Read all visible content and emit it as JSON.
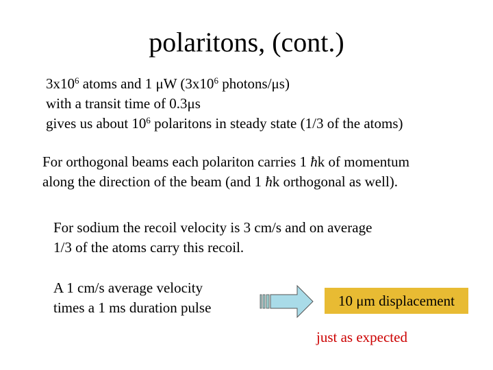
{
  "title": "polaritons, (cont.)",
  "paragraphs": [
    {
      "lines": [
        [
          "3x10",
          {
            "sup": "6"
          },
          " atoms and 1 μW (3x10",
          {
            "sup": "6"
          },
          " photons/μs)"
        ],
        [
          "with a transit time of 0.3μs"
        ],
        [
          "gives us about 10",
          {
            "sup": "6"
          },
          " polaritons in steady state (1/3 of the atoms)"
        ]
      ]
    },
    {
      "lines": [
        [
          "For orthogonal beams each polariton carries 1 ",
          {
            "hbar": "ħ"
          },
          "k of momentum"
        ],
        [
          "along the direction of the beam (and 1 ",
          {
            "hbar": "ħ"
          },
          "k orthogonal as well)."
        ]
      ]
    },
    {
      "lines": [
        [
          "For sodium the recoil velocity is 3 cm/s and on average"
        ],
        [
          "1/3 of the atoms carry this recoil."
        ]
      ]
    },
    {
      "lines": [
        [
          "A 1 cm/s average velocity"
        ],
        [
          "times a 1 ms duration pulse"
        ]
      ]
    }
  ],
  "result_box": "10 μm displacement",
  "note": "just as expected"
}
